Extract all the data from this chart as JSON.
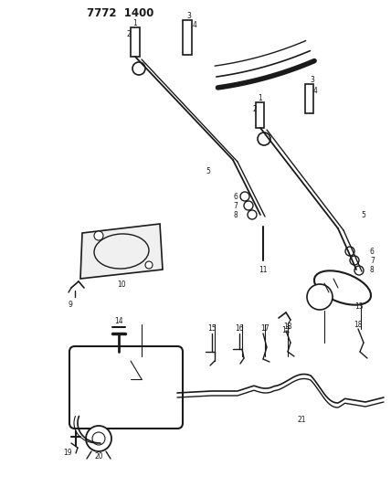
{
  "title": "7772  1400",
  "bg": "#ffffff",
  "lc": "#1a1a1a",
  "fig_w": 4.28,
  "fig_h": 5.33,
  "dpi": 100
}
